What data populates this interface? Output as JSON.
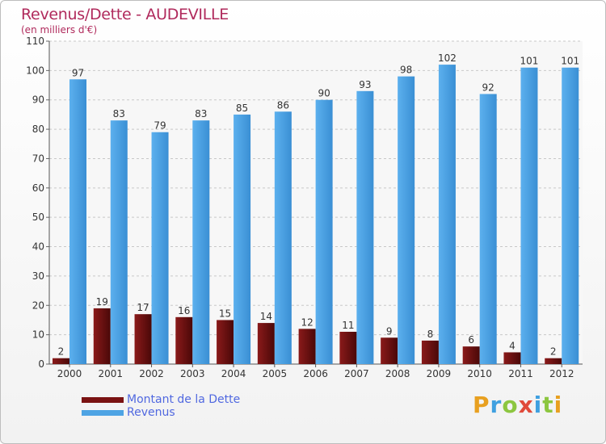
{
  "chart_data": {
    "type": "bar",
    "title": "Revenus/Dette - AUDEVILLE",
    "subtitle": "(en milliers d'€)",
    "categories": [
      "2000",
      "2001",
      "2002",
      "2003",
      "2004",
      "2005",
      "2006",
      "2007",
      "2008",
      "2009",
      "2010",
      "2011",
      "2012"
    ],
    "series": [
      {
        "name": "Montant de la Dette",
        "values": [
          2,
          19,
          17,
          16,
          15,
          14,
          12,
          11,
          9,
          8,
          6,
          4,
          2
        ],
        "color": "#7a1212"
      },
      {
        "name": "Revenus",
        "values": [
          97,
          83,
          79,
          83,
          85,
          86,
          90,
          93,
          98,
          102,
          92,
          101,
          101
        ],
        "color": "#4ea4e4"
      }
    ],
    "ylim": [
      0,
      110
    ],
    "yticks": [
      0,
      10,
      20,
      30,
      40,
      50,
      60,
      70,
      80,
      90,
      100,
      110
    ],
    "grid": true,
    "legend": "bottom-left"
  },
  "brand": {
    "letters": [
      "P",
      "r",
      "o",
      "x",
      "i",
      "t",
      "i"
    ],
    "colors": [
      "#e8a020",
      "#3fa0e0",
      "#8cc63f",
      "#e04a3a",
      "#3fa0e0",
      "#8cc63f",
      "#e8a020"
    ]
  }
}
